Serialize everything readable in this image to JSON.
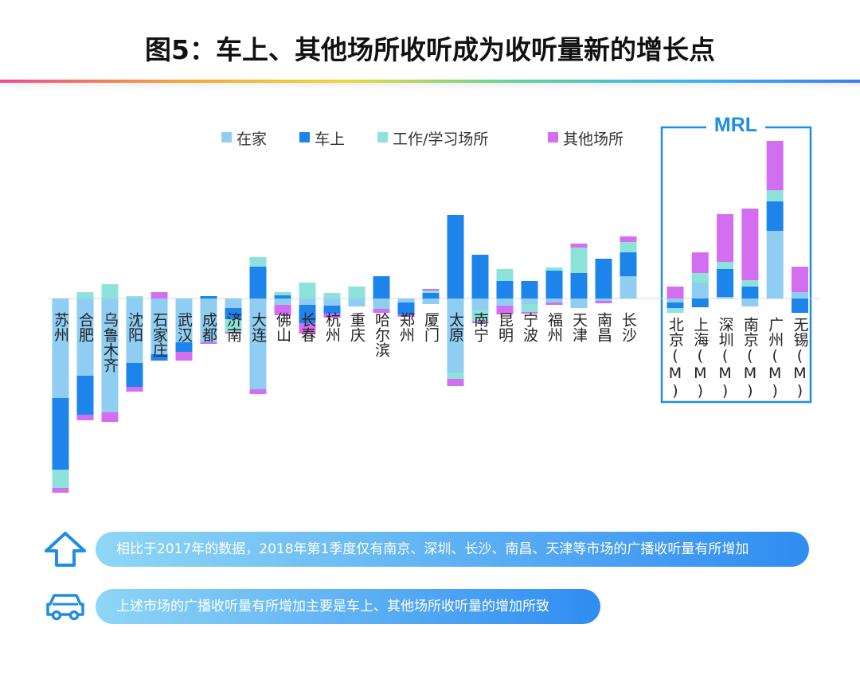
{
  "title": "图5：车上、其他场所收听成为收听量新的增长点",
  "mrl_label": "MRL",
  "callouts": {
    "first": "相比于2017年的数据，2018年第1季度仅有南京、深圳、长沙、南昌、天津等市场的广播收听量有所增加",
    "second": "上述市场的广播收听量有所增加主要是车上、其他场所收听量的增加所致"
  },
  "icons": {
    "first": "up-arrow-icon",
    "second": "car-icon"
  },
  "colors": {
    "在家": "#8fcdf3",
    "车上": "#1d84ec",
    "工作/学习场所": "#8de3da",
    "其他场所": "#d46ef0",
    "accent": "#1f8ce6"
  },
  "chart_data": {
    "type": "bar",
    "stacked": true,
    "note": "Change in listening volume by location (2018 Q1 vs 2017); positive above baseline, negative below. Values estimated in relative units.",
    "legend": [
      "在家",
      "车上",
      "工作/学习场所",
      "其他场所"
    ],
    "categories": [
      "苏州",
      "合肥",
      "乌鲁木齐",
      "沈阳",
      "石家庄",
      "武汉",
      "成都",
      "济南",
      "大连",
      "佛山",
      "长春",
      "杭州",
      "重庆",
      "哈尔滨",
      "郑州",
      "厦门",
      "太原",
      "南宁",
      "昆明",
      "宁波",
      "福州",
      "天津",
      "南昌",
      "长沙",
      "北京(M)",
      "上海(M)",
      "深圳(M)",
      "南京(M)",
      "广州(M)",
      "无锡(M)"
    ],
    "series": [
      {
        "name": "在家",
        "values": [
          -125,
          -97,
          -143,
          -81,
          -70,
          -55,
          -55,
          -12,
          -114,
          -8,
          -8,
          -9,
          -10,
          -13,
          -5,
          -7,
          -93,
          -14,
          -9,
          -7,
          -5,
          -12,
          -3,
          28,
          -5,
          20,
          2,
          -10,
          85,
          8
        ]
      },
      {
        "name": "车上",
        "values": [
          -90,
          -49,
          0,
          -30,
          -8,
          -12,
          3,
          -14,
          40,
          4,
          -23,
          -10,
          0,
          28,
          -15,
          7,
          105,
          55,
          22,
          22,
          35,
          32,
          50,
          30,
          -7,
          -11,
          35,
          15,
          37,
          -18
        ]
      },
      {
        "name": "工作/学习场所",
        "values": [
          -23,
          8,
          18,
          3,
          0,
          0,
          0,
          -16,
          12,
          4,
          20,
          7,
          15,
          0,
          0,
          3,
          -8,
          -15,
          15,
          -10,
          4,
          32,
          0,
          13,
          -6,
          12,
          9,
          8,
          14,
          0
        ]
      },
      {
        "name": "其他场所",
        "values": [
          -6,
          -7,
          -12,
          -6,
          8,
          -11,
          -2,
          -2,
          -6,
          -13,
          -13,
          -5,
          0,
          -5,
          -3,
          2,
          -9,
          -2,
          -11,
          -2,
          -3,
          5,
          -3,
          7,
          15,
          26,
          60,
          90,
          62,
          32
        ]
      }
    ]
  }
}
